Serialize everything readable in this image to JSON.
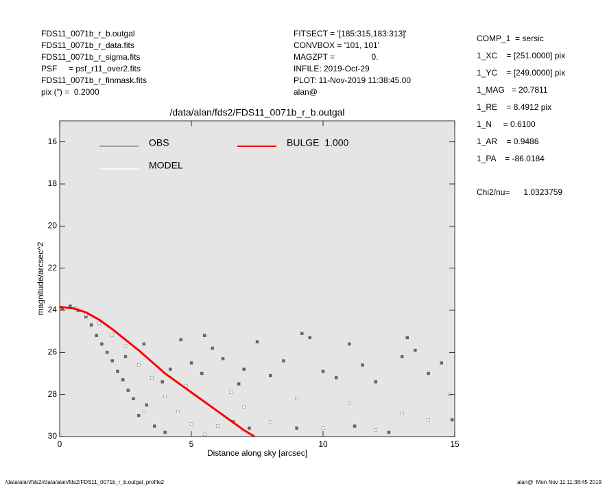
{
  "header": {
    "left": [
      "FDS11_0071b_r_b.outgal",
      "FDS11_0071b_r_data.fits",
      "FDS11_0071b_r_sigma.fits",
      "PSF     = psf_r11_over2.fits",
      "FDS11_0071b_r_finmask.fits",
      "pix (\") =  0.2000"
    ],
    "middle": [
      "FITSECT = '[185:315,183:313]'",
      "CONVBOX = '101, 101'",
      "MAGZPT =                0.",
      "INFILE: 2019-Oct-29",
      "PLOT: 11-Nov-2019 11:38:45.00",
      "alan@"
    ],
    "right": [
      "COMP_1  = sersic",
      "1_XC    = [251.0000] pix",
      "1_YC    = [249.0000] pix",
      "1_MAG   = 20.7811",
      "1_RE    = 8.4912 pix",
      "1_N     = 0.6100",
      "1_AR    = 0.9486",
      "1_PA    = -86.0184"
    ],
    "chi2": "Chi2/nu=      1.0323759"
  },
  "footer": {
    "left": "/data/alan/fds2//data/alan/fds2/FDS11_0071b_r_b.outgal_profile2",
    "right": "alan@  Mon Nov 11 11:38:45 2019"
  },
  "chart_data": {
    "type": "scatter",
    "title": "/data/alan/fds2/FDS11_0071b_r_b.outgal",
    "x_label": "Distance along sky [arcsec]",
    "y_label": "magnitude/arcsec^2",
    "xlim": [
      0,
      15
    ],
    "ylim": [
      30,
      15
    ],
    "xticks": [
      0,
      5,
      10,
      15
    ],
    "yticks": [
      16,
      18,
      20,
      22,
      24,
      26,
      28,
      30
    ],
    "background": "#e5e5e5",
    "series": [
      {
        "name": "OBS",
        "color": "#666666",
        "legend_color": "#8a8a8a",
        "kind": "points",
        "x": [
          0.1,
          0.4,
          0.7,
          1.0,
          1.2,
          1.4,
          1.6,
          1.8,
          2.0,
          2.2,
          2.4,
          2.6,
          2.8,
          3.0,
          3.3,
          3.6,
          3.9,
          4.2,
          4.6,
          5.0,
          5.4,
          5.8,
          6.2,
          6.6,
          7.0,
          7.5,
          8.0,
          8.5,
          9.0,
          9.5,
          10.0,
          10.5,
          11.0,
          11.5,
          12.0,
          12.5,
          13.0,
          13.5,
          14.0,
          14.5,
          14.9,
          3.2,
          4.0,
          5.5,
          7.2,
          9.2,
          11.2,
          13.2,
          2.5,
          6.8
        ],
        "values": [
          23.9,
          23.8,
          24.0,
          24.3,
          24.7,
          25.2,
          25.6,
          26.0,
          26.4,
          26.9,
          27.3,
          27.8,
          28.2,
          29.0,
          28.5,
          29.5,
          27.4,
          26.8,
          25.4,
          26.5,
          27.0,
          25.8,
          26.3,
          29.3,
          26.8,
          25.5,
          27.1,
          26.4,
          29.6,
          25.3,
          26.9,
          27.2,
          25.6,
          26.6,
          27.4,
          29.8,
          26.2,
          25.9,
          27.0,
          26.5,
          29.2,
          25.6,
          29.8,
          25.2,
          29.6,
          25.1,
          29.5,
          25.3,
          26.2,
          27.5
        ]
      },
      {
        "name": "MODEL",
        "color": "#ffffff",
        "legend_color": "#ffffff",
        "kind": "points",
        "x": [
          0.2,
          0.6,
          1.0,
          1.5,
          2.0,
          2.5,
          3.0,
          3.5,
          4.0,
          4.5,
          5.0,
          5.5,
          6.0,
          7.0,
          8.0,
          9.0,
          10.0,
          11.0,
          12.0,
          13.0,
          14.0,
          14.8,
          3.2,
          4.8,
          6.5
        ],
        "values": [
          23.9,
          23.9,
          24.2,
          24.6,
          25.2,
          25.7,
          26.6,
          27.2,
          28.1,
          28.8,
          29.4,
          29.9,
          29.5,
          28.6,
          29.3,
          28.2,
          29.6,
          28.4,
          29.7,
          28.9,
          29.2,
          28.0,
          28.8,
          27.6,
          27.9
        ]
      },
      {
        "name": "BULGE  1.000",
        "color": "#ff0000",
        "legend_color": "#ff0000",
        "kind": "line",
        "x": [
          0,
          0.5,
          1,
          1.5,
          2,
          2.5,
          3,
          3.5,
          4,
          4.5,
          5,
          5.5,
          6,
          6.5,
          7,
          7.4
        ],
        "values": [
          23.85,
          23.9,
          24.1,
          24.45,
          24.9,
          25.4,
          25.9,
          26.45,
          27.0,
          27.45,
          27.9,
          28.35,
          28.8,
          29.25,
          29.7,
          30.0
        ]
      }
    ]
  }
}
